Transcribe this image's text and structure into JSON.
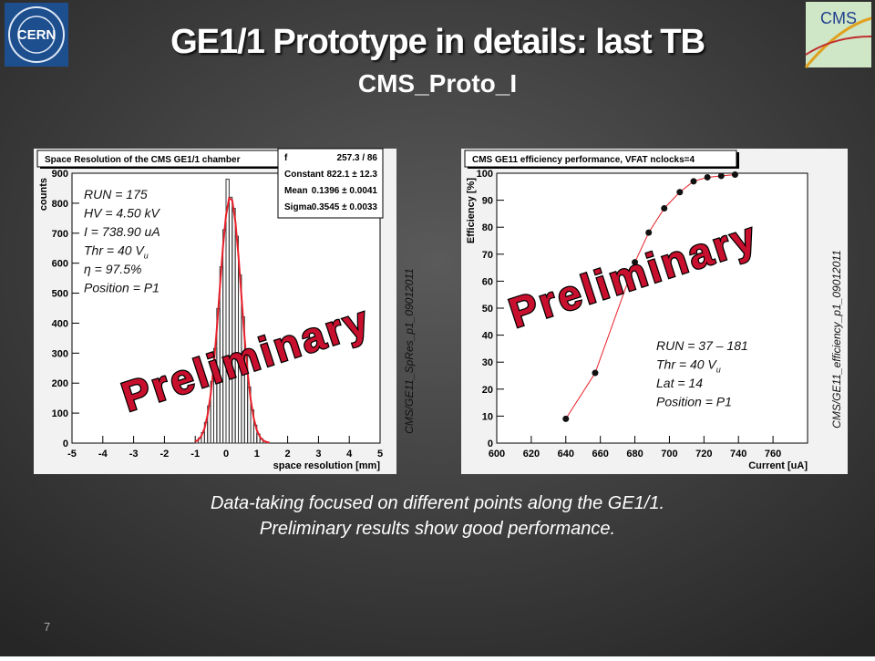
{
  "title": "GE1/1 Prototype in details: last TB",
  "subtitle": "CMS_Proto_I",
  "logos": {
    "left": "CERN",
    "right": "CMS"
  },
  "caption": [
    "Data-taking focused on different points along the GE1/1.",
    "Preliminary results show good performance."
  ],
  "page_number": "7",
  "chart_data": [
    {
      "type": "histogram",
      "title": "Space Resolution of the CMS GE1/1 chamber",
      "x_label": "space resolution [mm]",
      "y_label": "counts",
      "bins": [
        -1.0,
        -0.9,
        -0.8,
        -0.7,
        -0.6,
        -0.5,
        -0.4,
        -0.3,
        -0.2,
        -0.1,
        0.0,
        0.1,
        0.2,
        0.3,
        0.4,
        0.5,
        0.6,
        0.7,
        0.8,
        0.9,
        1.0,
        1.1,
        1.2,
        1.3,
        1.4
      ],
      "counts": [
        7,
        17,
        35,
        69,
        124,
        206,
        316,
        449,
        588,
        712,
        880,
        820,
        783,
        690,
        561,
        421,
        292,
        187,
        111,
        60,
        30,
        14,
        6,
        2
      ],
      "color": "#333333",
      "fit": {
        "color": "#e8202a",
        "x": [
          -1.0,
          -0.9,
          -0.8,
          -0.7,
          -0.6,
          -0.5,
          -0.4,
          -0.3,
          -0.2,
          -0.1,
          0.0,
          0.1,
          0.2,
          0.3,
          0.4,
          0.5,
          0.6,
          0.7,
          0.8,
          0.9,
          1.0,
          1.1,
          1.2,
          1.3,
          1.4
        ],
        "values": [
          5,
          11,
          24,
          49,
          93,
          161,
          257,
          380,
          519,
          654,
          760,
          817,
          810,
          742,
          628,
          491,
          354,
          236,
          145,
          82,
          43,
          21,
          9,
          4,
          2
        ]
      },
      "xlim": [
        -5,
        5
      ],
      "xticks": [
        -5,
        -4,
        -3,
        -2,
        -1,
        0,
        1,
        2,
        3,
        4,
        5
      ],
      "ylim": [
        0,
        900
      ],
      "yticks": [
        0,
        100,
        200,
        300,
        400,
        500,
        600,
        700,
        800,
        900
      ],
      "stats": [
        [
          "f",
          "257.3 / 86"
        ],
        [
          "Constant",
          "822.1 ± 12.3"
        ],
        [
          "Mean",
          "0.1396 ± 0.0041"
        ],
        [
          "Sigma",
          "0.3545 ± 0.0033"
        ]
      ],
      "annotations": [
        "RUN = 175",
        "HV = 4.50 kV",
        "I = 738.90 uA",
        {
          "text": "Thr = 40 V",
          "sub": "u"
        },
        "η = 97.5%",
        "Position = P1"
      ],
      "watermark": "Preliminary",
      "side_label": "CMS/GE11_SpRes_p1_09012011"
    },
    {
      "type": "scatter",
      "title": "CMS GE11 efficiency performance, VFAT nclocks=4",
      "x_label": "Current [uA]",
      "y_label": "Efficiency [%]",
      "x": [
        640,
        657,
        680,
        688,
        697,
        706,
        714,
        722,
        730,
        738
      ],
      "values": [
        9,
        26,
        67,
        78,
        87,
        93,
        97,
        98.5,
        99,
        99.5
      ],
      "color": "#111111",
      "line_color": "#e8202a",
      "xlim": [
        600,
        780
      ],
      "xticks": [
        600,
        620,
        640,
        660,
        680,
        700,
        720,
        740,
        760
      ],
      "ylim": [
        0,
        100
      ],
      "yticks": [
        0,
        10,
        20,
        30,
        40,
        50,
        60,
        70,
        80,
        90,
        100
      ],
      "annotations": [
        "RUN = 37 – 181",
        {
          "text": "Thr = 40 V",
          "sub": "u"
        },
        "Lat = 14",
        "Position = P1"
      ],
      "watermark": "Preliminary",
      "side_label": "CMS/GE11_efficiency_p1_09012011"
    }
  ]
}
